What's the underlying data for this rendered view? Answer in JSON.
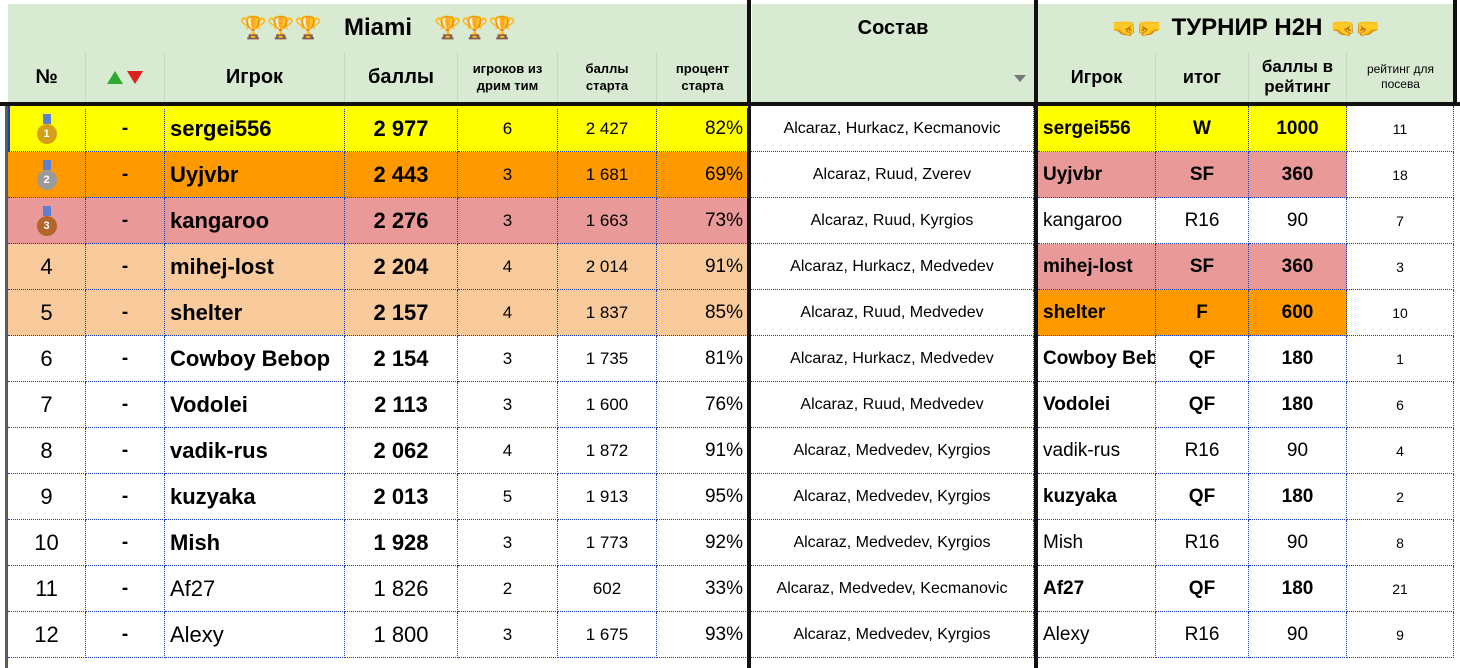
{
  "colors": {
    "header_bg": "#d9ead3",
    "gold": "#ffff00",
    "orange": "#ff9900",
    "red": "#ea9999",
    "peach": "#f9cb9c",
    "white": "#ffffff",
    "up_arrow": "#2eaa2e",
    "down_arrow": "#e02020"
  },
  "header": {
    "miami_title": "Miami",
    "trophy_left": "🏆🏆🏆",
    "trophy_right": "🏆🏆🏆",
    "sostav_title": "Состав",
    "h2h_title": "ТУРНИР H2H",
    "hand_left": "🤜🤛",
    "hand_right": "🤜🤛"
  },
  "columns": {
    "num": "№",
    "player": "Игрок",
    "points": "баллы",
    "dream_players": "игроков из дрим тим",
    "start_points": "баллы старта",
    "start_percent": "процент старта",
    "h2h_player": "Игрок",
    "h2h_result": "итог",
    "h2h_rating_points": "баллы в рейтинг",
    "h2h_seed_rating": "рейтинг для посева"
  },
  "rows": [
    {
      "num": "",
      "medal": "1",
      "move": "-",
      "player": "sergei556",
      "points": "2 977",
      "dream": "6",
      "start": "2 427",
      "pct": "82%",
      "comp": "Alcaraz, Hurkacz, Kecmanovic",
      "h2h_player": "sergei556",
      "h2h_result": "W",
      "h2h_points": "1000",
      "seed": "11",
      "bg": "#ffff00",
      "h2h_bg": "#ffff00",
      "player_bold": true,
      "h2h_bold": true
    },
    {
      "num": "",
      "medal": "2",
      "move": "-",
      "player": "Uyjvbr",
      "points": "2 443",
      "dream": "3",
      "start": "1 681",
      "pct": "69%",
      "comp": "Alcaraz, Ruud, Zverev",
      "h2h_player": "Uyjvbr",
      "h2h_result": "SF",
      "h2h_points": "360",
      "seed": "18",
      "bg": "#ff9900",
      "h2h_bg": "#ea9999",
      "player_bold": true,
      "h2h_bold": true
    },
    {
      "num": "",
      "medal": "3",
      "move": "-",
      "player": "kangaroo",
      "points": "2 276",
      "dream": "3",
      "start": "1 663",
      "pct": "73%",
      "comp": "Alcaraz, Ruud, Kyrgios",
      "h2h_player": "kangaroo",
      "h2h_result": "R16",
      "h2h_points": "90",
      "seed": "7",
      "bg": "#ea9999",
      "h2h_bg": "#ffffff",
      "player_bold": true,
      "h2h_bold": false
    },
    {
      "num": "4",
      "medal": "",
      "move": "-",
      "player": "mihej-lost",
      "points": "2 204",
      "dream": "4",
      "start": "2 014",
      "pct": "91%",
      "comp": "Alcaraz, Hurkacz, Medvedev",
      "h2h_player": "mihej-lost",
      "h2h_result": "SF",
      "h2h_points": "360",
      "seed": "3",
      "bg": "#f9cb9c",
      "h2h_bg": "#ea9999",
      "player_bold": true,
      "h2h_bold": true
    },
    {
      "num": "5",
      "medal": "",
      "move": "-",
      "player": "shelter",
      "points": "2 157",
      "dream": "4",
      "start": "1 837",
      "pct": "85%",
      "comp": "Alcaraz, Ruud, Medvedev",
      "h2h_player": "shelter",
      "h2h_result": "F",
      "h2h_points": "600",
      "seed": "10",
      "bg": "#f9cb9c",
      "h2h_bg": "#ff9900",
      "player_bold": true,
      "h2h_bold": true
    },
    {
      "num": "6",
      "medal": "",
      "move": "-",
      "player": "Cowboy Bebop",
      "points": "2 154",
      "dream": "3",
      "start": "1 735",
      "pct": "81%",
      "comp": "Alcaraz, Hurkacz, Medvedev",
      "h2h_player": "Cowboy Beb",
      "h2h_result": "QF",
      "h2h_points": "180",
      "seed": "1",
      "bg": "#ffffff",
      "h2h_bg": "#ffffff",
      "player_bold": true,
      "h2h_bold": true
    },
    {
      "num": "7",
      "medal": "",
      "move": "-",
      "player": "Vodolei",
      "points": "2 113",
      "dream": "3",
      "start": "1 600",
      "pct": "76%",
      "comp": "Alcaraz, Ruud, Medvedev",
      "h2h_player": "Vodolei",
      "h2h_result": "QF",
      "h2h_points": "180",
      "seed": "6",
      "bg": "#ffffff",
      "h2h_bg": "#ffffff",
      "player_bold": true,
      "h2h_bold": true
    },
    {
      "num": "8",
      "medal": "",
      "move": "-",
      "player": "vadik-rus",
      "points": "2 062",
      "dream": "4",
      "start": "1 872",
      "pct": "91%",
      "comp": "Alcaraz, Medvedev, Kyrgios",
      "h2h_player": "vadik-rus",
      "h2h_result": "R16",
      "h2h_points": "90",
      "seed": "4",
      "bg": "#ffffff",
      "h2h_bg": "#ffffff",
      "player_bold": true,
      "h2h_bold": false
    },
    {
      "num": "9",
      "medal": "",
      "move": "-",
      "player": "kuzyaka",
      "points": "2 013",
      "dream": "5",
      "start": "1 913",
      "pct": "95%",
      "comp": "Alcaraz, Medvedev, Kyrgios",
      "h2h_player": "kuzyaka",
      "h2h_result": "QF",
      "h2h_points": "180",
      "seed": "2",
      "bg": "#ffffff",
      "h2h_bg": "#ffffff",
      "player_bold": true,
      "h2h_bold": true
    },
    {
      "num": "10",
      "medal": "",
      "move": "-",
      "player": "Mish",
      "points": "1 928",
      "dream": "3",
      "start": "1 773",
      "pct": "92%",
      "comp": "Alcaraz, Medvedev, Kyrgios",
      "h2h_player": "Mish",
      "h2h_result": "R16",
      "h2h_points": "90",
      "seed": "8",
      "bg": "#ffffff",
      "h2h_bg": "#ffffff",
      "player_bold": true,
      "h2h_bold": false
    },
    {
      "num": "11",
      "medal": "",
      "move": "-",
      "player": "Af27",
      "points": "1 826",
      "dream": "2",
      "start": "602",
      "pct": "33%",
      "comp": "Alcaraz, Medvedev, Kecmanovic",
      "h2h_player": "Af27",
      "h2h_result": "QF",
      "h2h_points": "180",
      "seed": "21",
      "bg": "#ffffff",
      "h2h_bg": "#ffffff",
      "player_bold": false,
      "h2h_bold": true
    },
    {
      "num": "12",
      "medal": "",
      "move": "-",
      "player": "Alexy",
      "points": "1 800",
      "dream": "3",
      "start": "1 675",
      "pct": "93%",
      "comp": "Alcaraz, Medvedev, Kyrgios",
      "h2h_player": "Alexy",
      "h2h_result": "R16",
      "h2h_points": "90",
      "seed": "9",
      "bg": "#ffffff",
      "h2h_bg": "#ffffff",
      "player_bold": false,
      "h2h_bold": false
    }
  ]
}
